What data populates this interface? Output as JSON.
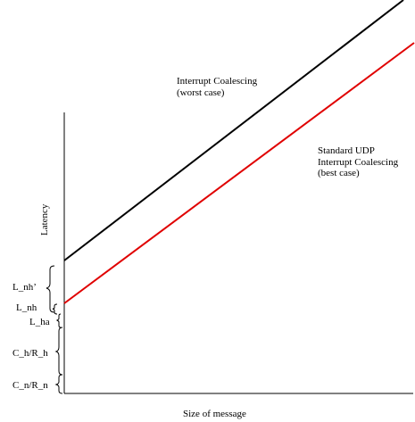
{
  "diagram": {
    "xlabel": "Size of message",
    "ylabel": "Latency",
    "lines": [
      {
        "label_lines": [
          "Interrupt Coalescing",
          "(worst case)"
        ],
        "color": "#000000"
      },
      {
        "label_lines": [
          "Standard UDP",
          "Interrupt Coalescing",
          "(best case)"
        ],
        "color": "#e00000"
      }
    ],
    "brace_labels": [
      "L_nh’",
      "L_nh",
      "L_ha",
      "C_h/R_h",
      "C_n/R_n"
    ]
  }
}
